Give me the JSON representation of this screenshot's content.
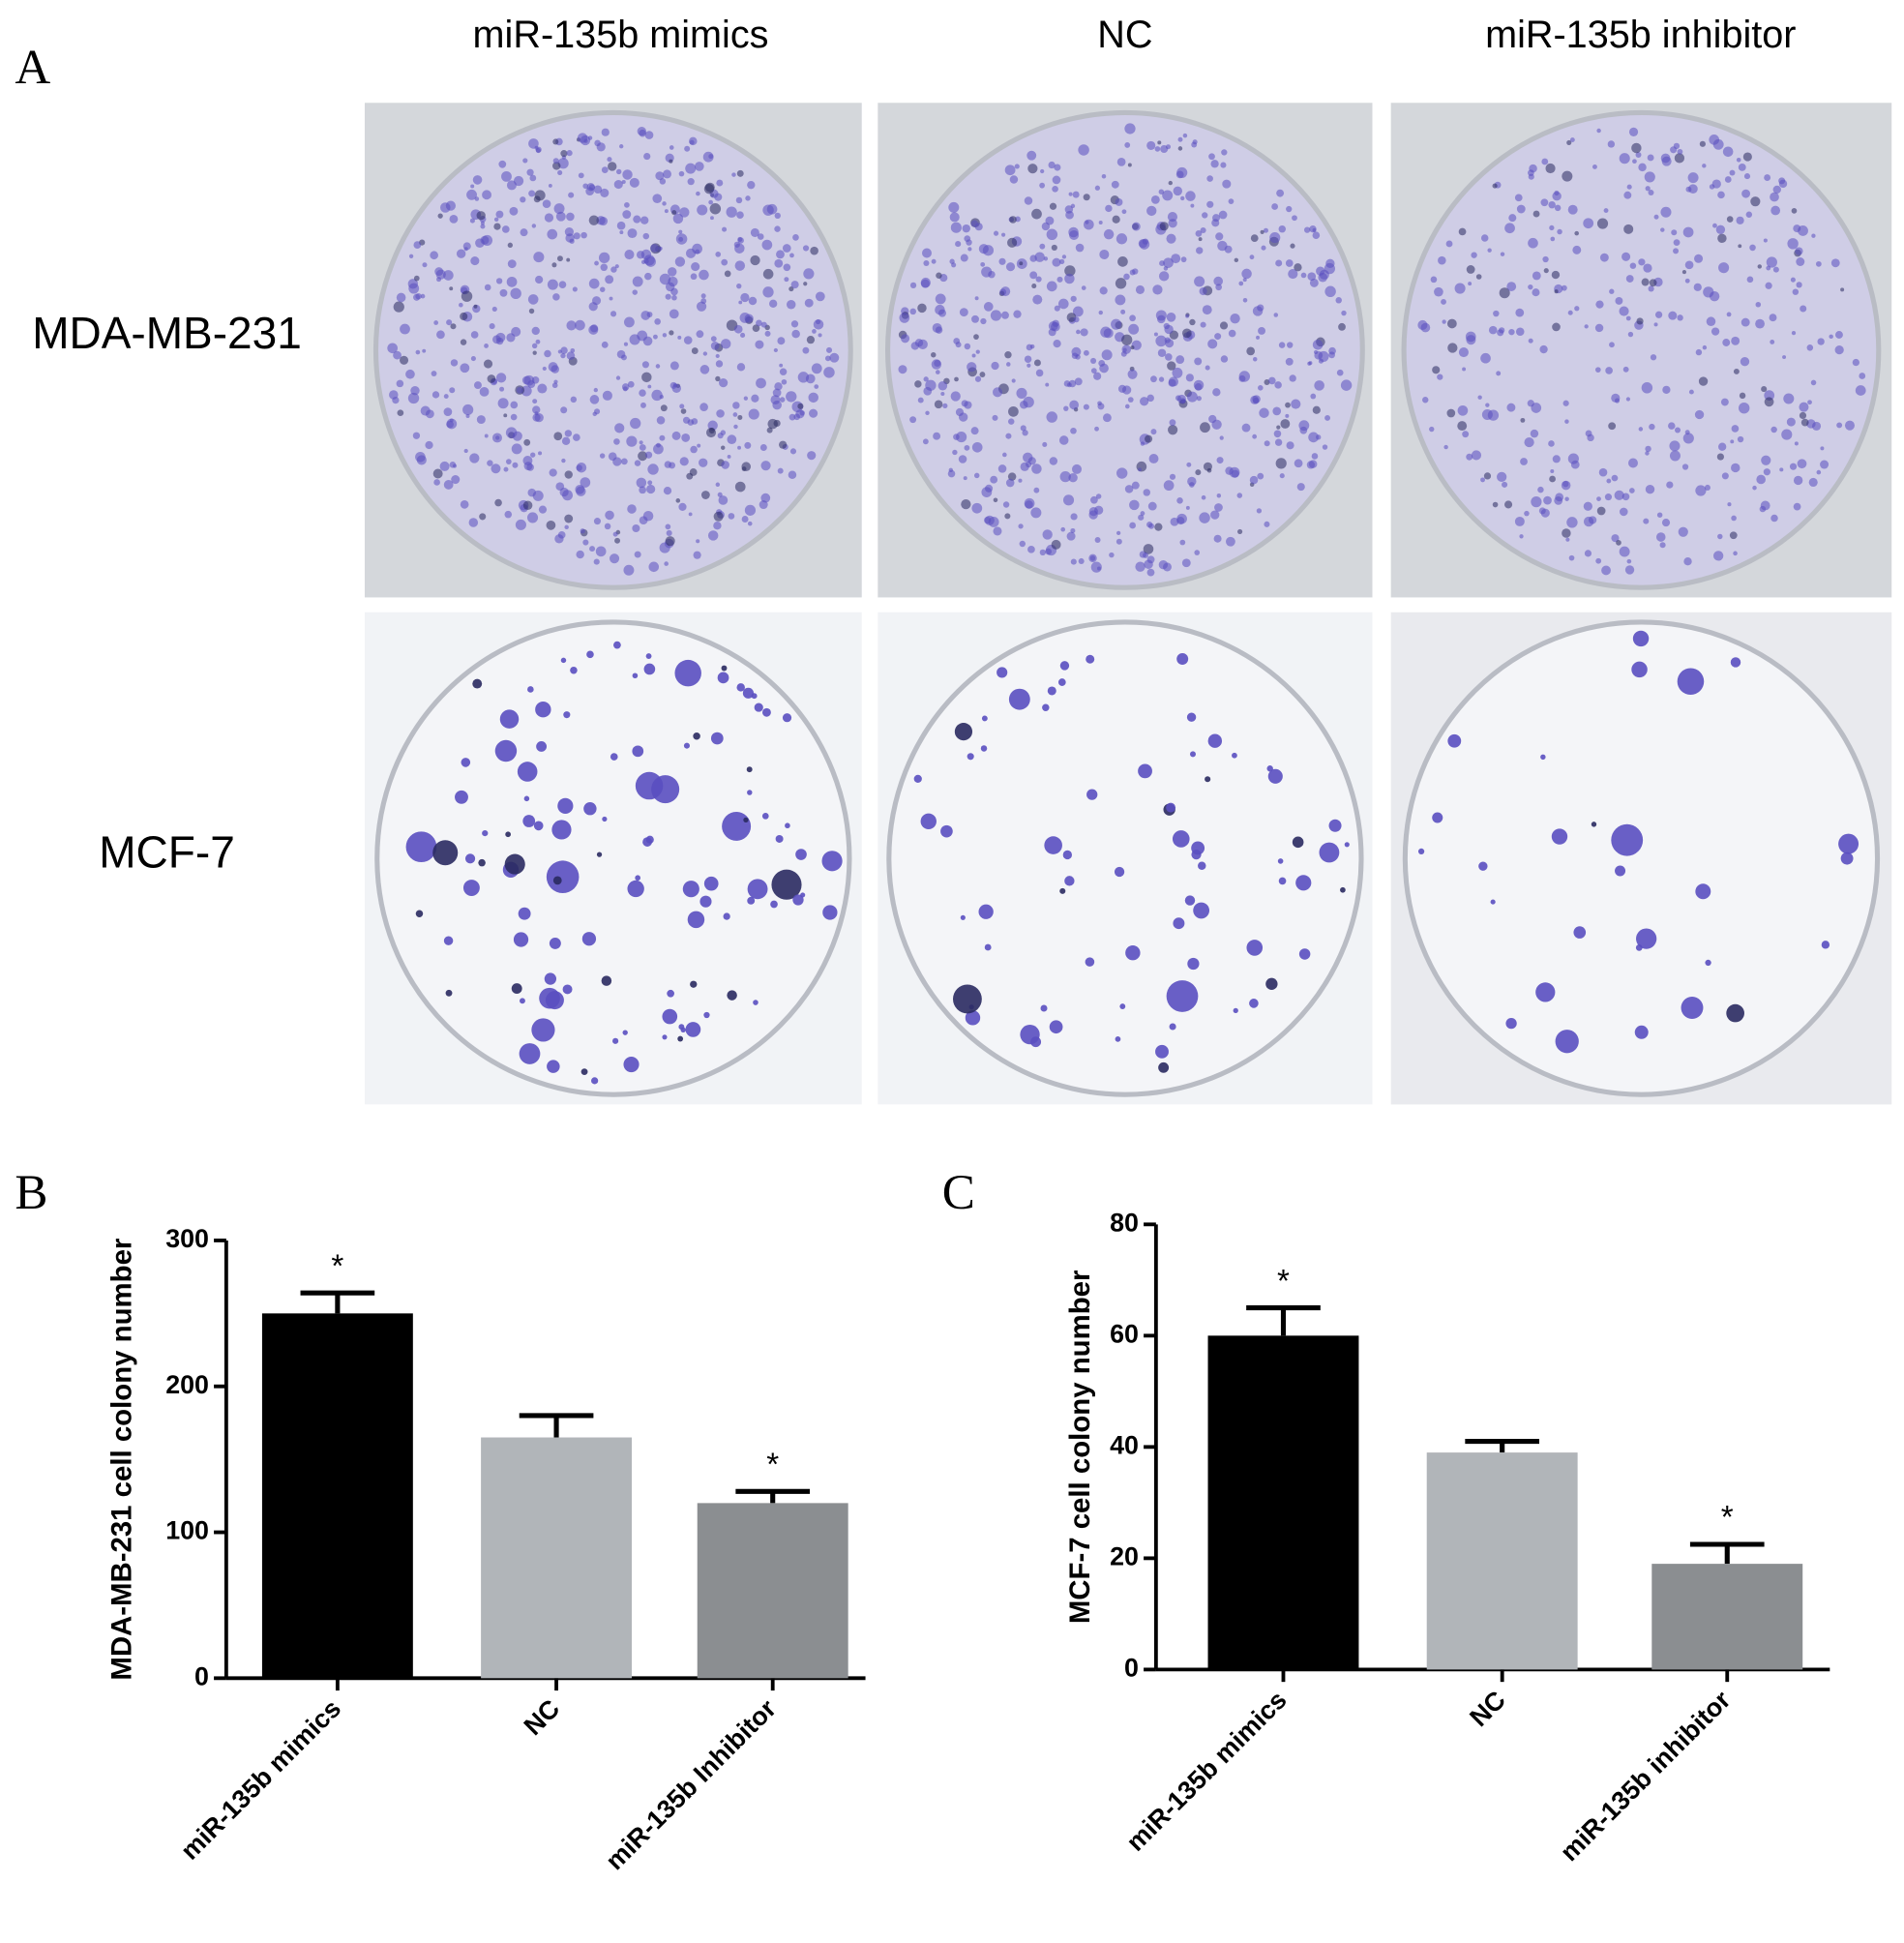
{
  "panel_a": {
    "letter": "A",
    "columns": [
      "miR-135b mimics",
      "NC",
      "miR-135b inhibitor"
    ],
    "rows": [
      "MDA-MB-231",
      "MCF-7"
    ]
  },
  "chart_data": [
    {
      "type": "bar",
      "panel": "B",
      "ylabel": "MDA-MB-231 cell colony number",
      "categories": [
        "miR-135b mimics",
        "NC",
        "miR-135b Inhibitor"
      ],
      "values": [
        250,
        165,
        120
      ],
      "errors": [
        14,
        15,
        8
      ],
      "significance": [
        "*",
        null,
        "*"
      ],
      "colors": [
        "#000000",
        "#b1b5b9",
        "#8b8e91"
      ],
      "ylim": [
        0,
        300
      ],
      "yticks": [
        0,
        100,
        200,
        300
      ]
    },
    {
      "type": "bar",
      "panel": "C",
      "ylabel": "MCF-7 cell colony number",
      "categories": [
        "miR-135b mimics",
        "NC",
        "miR-135b inhibitor"
      ],
      "values": [
        60,
        39,
        19
      ],
      "errors": [
        5,
        2,
        3.5
      ],
      "significance": [
        "*",
        null,
        "*"
      ],
      "colors": [
        "#000000",
        "#b1b5b9",
        "#8b8e91"
      ],
      "ylim": [
        0,
        80
      ],
      "yticks": [
        0,
        20,
        40,
        60,
        80
      ]
    }
  ]
}
